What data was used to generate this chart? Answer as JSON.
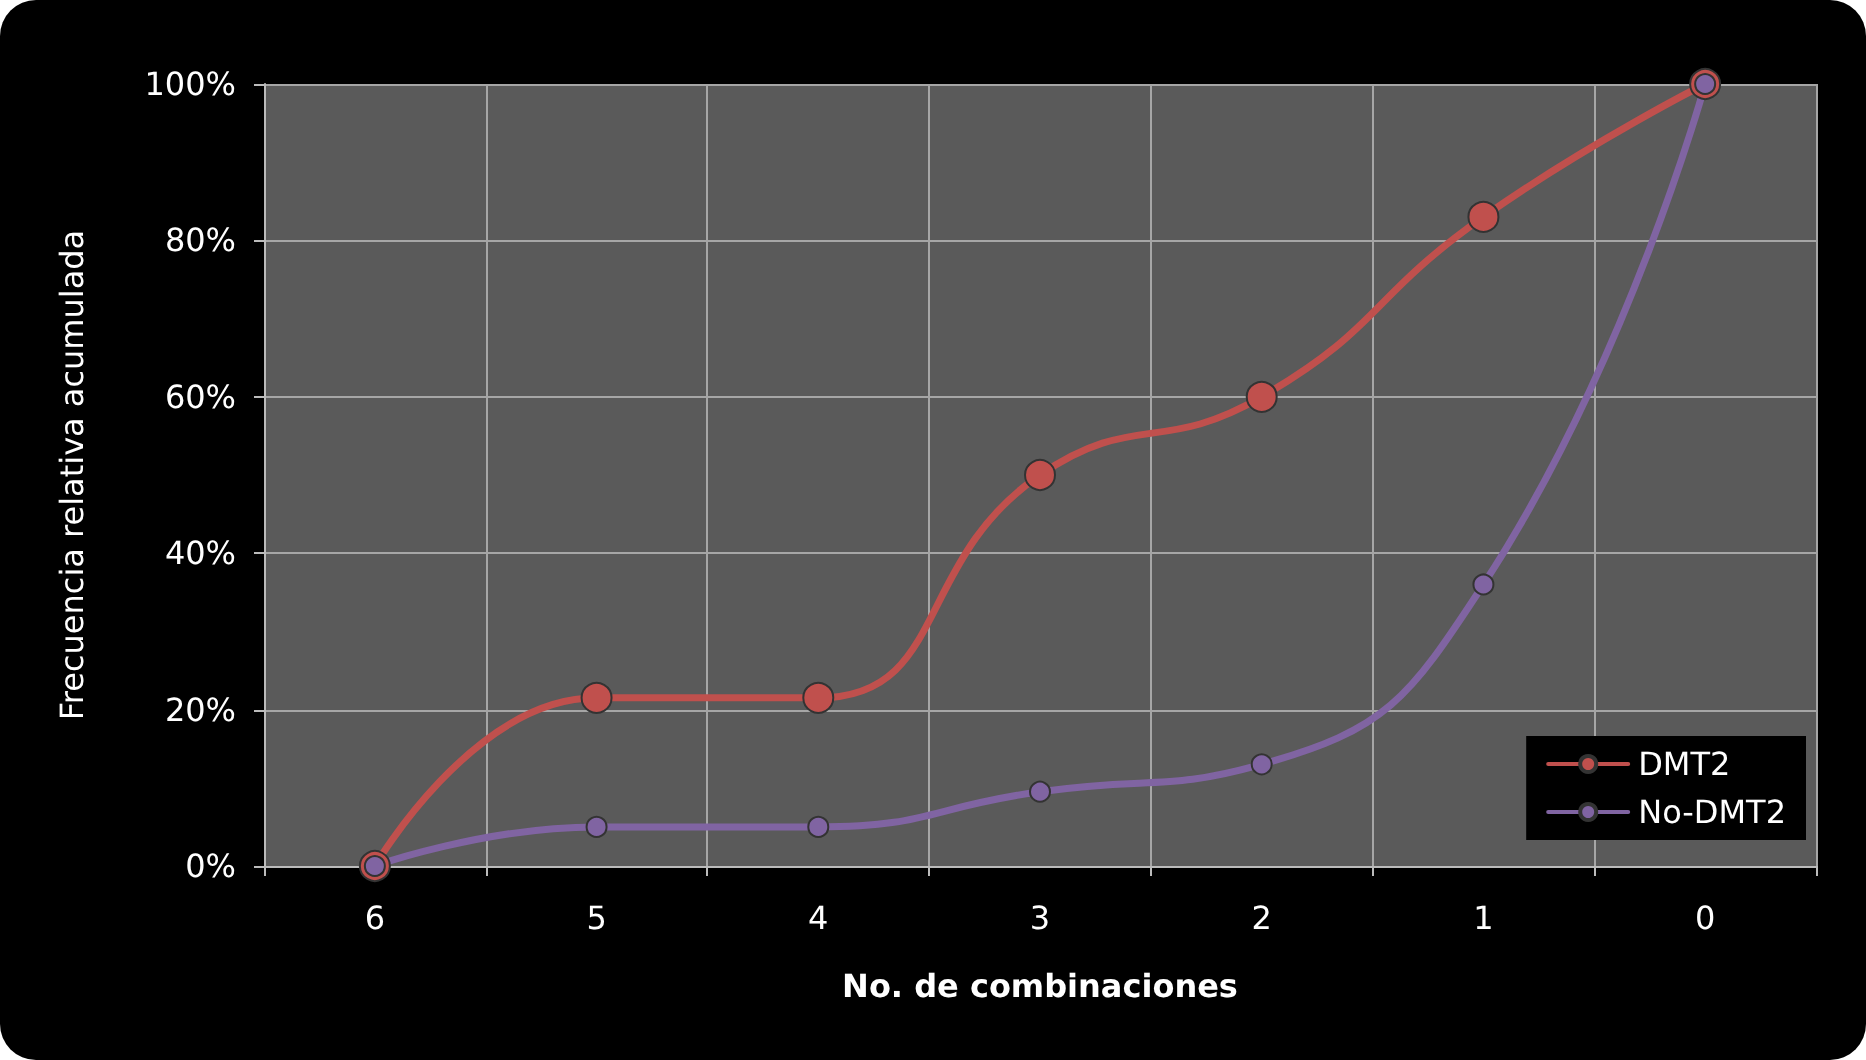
{
  "chart_data": {
    "type": "line",
    "xlabel": "No. de combinaciones",
    "ylabel": "Frecuencia relativa acumulada",
    "categories": [
      "6",
      "5",
      "4",
      "3",
      "2",
      "1",
      "0"
    ],
    "series": [
      {
        "name": "DMT2",
        "color": "#c0504d",
        "values": [
          0,
          21.5,
          21.5,
          50,
          60,
          83,
          100
        ]
      },
      {
        "name": "No-DMT2",
        "color": "#8064a2",
        "values": [
          0,
          5,
          5,
          9.5,
          13,
          36,
          100
        ]
      }
    ],
    "ylim": [
      0,
      100
    ],
    "yticks": [
      {
        "value": 0,
        "label": "0%"
      },
      {
        "value": 20,
        "label": "20%"
      },
      {
        "value": 40,
        "label": "40%"
      },
      {
        "value": 60,
        "label": "60%"
      },
      {
        "value": 80,
        "label": "80%"
      },
      {
        "value": 100,
        "label": "100%"
      }
    ],
    "grid": true,
    "legend": "bottom right",
    "marker": "circle",
    "line_style": "solid"
  }
}
